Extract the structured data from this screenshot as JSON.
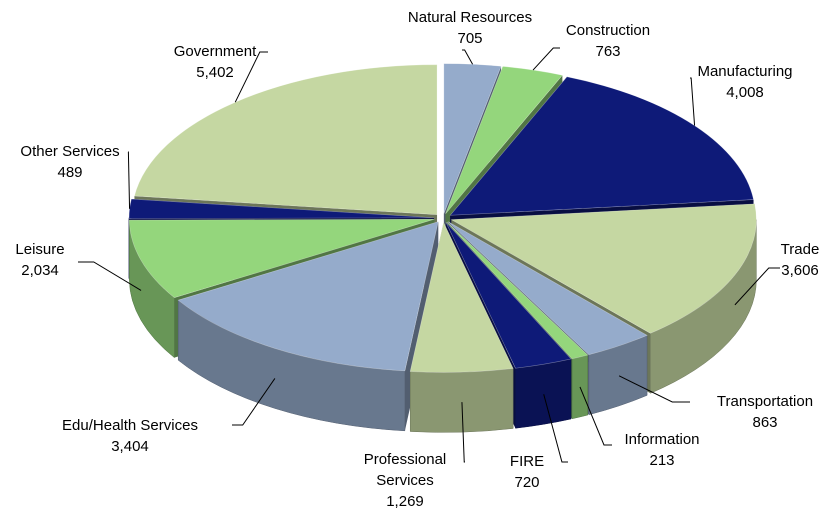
{
  "chart_data": {
    "type": "pie3d",
    "categories": [
      "Natural Resources",
      "Construction",
      "Manufacturing",
      "Trade",
      "Transportation",
      "Information",
      "FIRE",
      "Professional Services",
      "Edu/Health Services",
      "Leisure",
      "Other Services",
      "Government"
    ],
    "values": [
      705,
      763,
      4008,
      3606,
      863,
      213,
      720,
      1269,
      3404,
      2034,
      489,
      5402
    ],
    "value_labels": [
      "705",
      "763",
      "4,008",
      "3,606",
      "863",
      "213",
      "720",
      "1,269",
      "3,404",
      "2,034",
      "489",
      "5,402"
    ],
    "colors": [
      "#95abcb",
      "#94d67c",
      "#0e1a78",
      "#c5d7a2",
      "#95abcb",
      "#94d67c",
      "#0e1a78",
      "#c5d7a2",
      "#95abcb",
      "#94d67c",
      "#0e1a78",
      "#c5d7a2"
    ]
  }
}
